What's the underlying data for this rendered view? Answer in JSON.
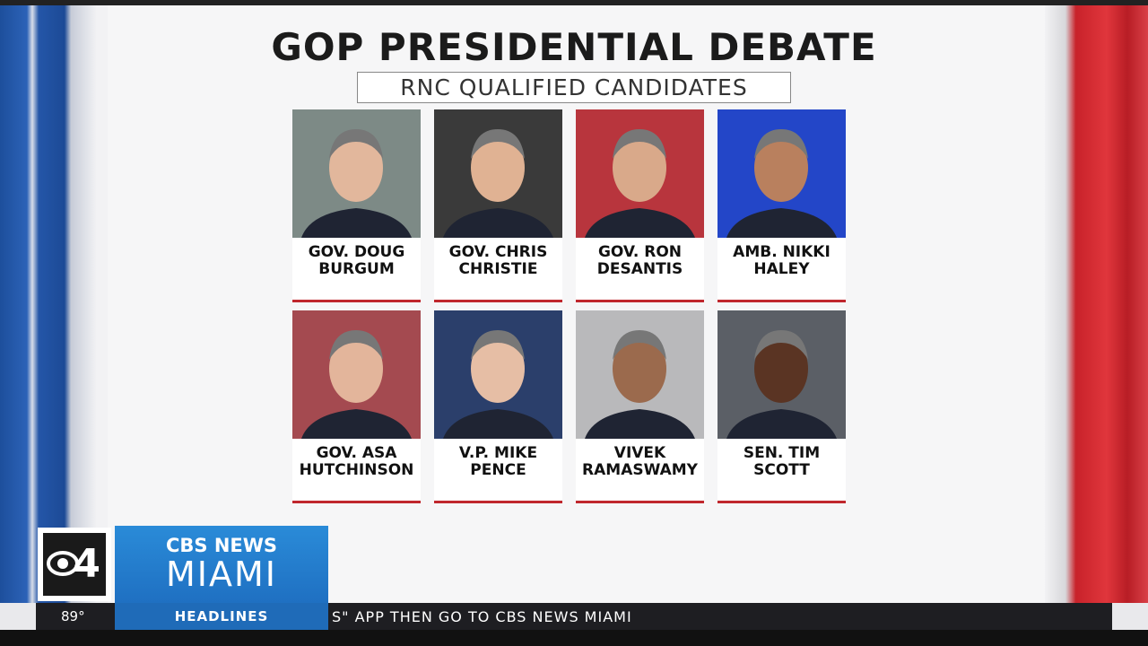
{
  "header": {
    "title": "GOP PRESIDENTIAL DEBATE",
    "subtitle": "RNC QUALIFIED CANDIDATES"
  },
  "candidates": [
    {
      "line1": "GOV. DOUG",
      "line2": "BURGUM"
    },
    {
      "line1": "GOV. CHRIS",
      "line2": "CHRISTIE"
    },
    {
      "line1": "GOV. RON",
      "line2": "DESANTIS"
    },
    {
      "line1": "AMB. NIKKI",
      "line2": "HALEY"
    },
    {
      "line1": "GOV. ASA",
      "line2": "HUTCHINSON"
    },
    {
      "line1": "V.P. MIKE",
      "line2": "PENCE"
    },
    {
      "line1": "VIVEK",
      "line2": "RAMASWAMY"
    },
    {
      "line1": "SEN. TIM",
      "line2": "SCOTT"
    }
  ],
  "branding": {
    "channel": "4",
    "network": "CBS NEWS",
    "city": "MIAMI"
  },
  "ticker": {
    "temperature": "89°",
    "label": "HEADLINES",
    "text": "S\" APP THEN GO TO CBS NEWS MIAMI"
  }
}
